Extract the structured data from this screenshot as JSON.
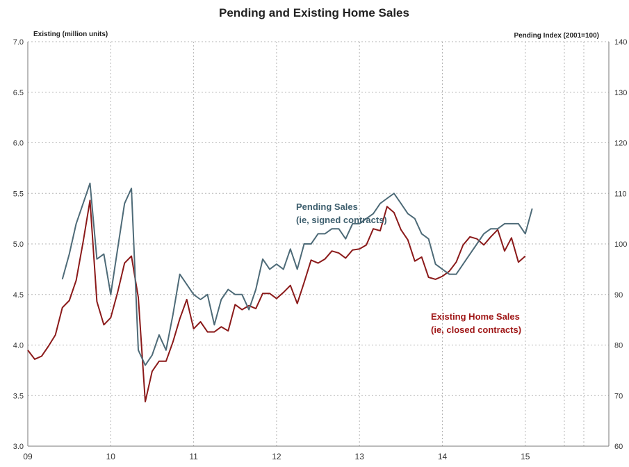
{
  "chart_data": {
    "type": "line",
    "title": "Pending and Existing Home Sales",
    "ylabel_left": "Existing (million units)",
    "ylabel_right": "Pending Index (2001=100)",
    "ylim_left": [
      3.0,
      7.0
    ],
    "ylim_right": [
      60,
      140
    ],
    "y_ticks_left": [
      "3.0",
      "3.5",
      "4.0",
      "4.5",
      "5.0",
      "5.5",
      "6.0",
      "6.5",
      "7.0"
    ],
    "y_ticks_right": [
      "60",
      "70",
      "80",
      "90",
      "100",
      "110",
      "120",
      "130",
      "140"
    ],
    "x_ticks": [
      "09",
      "10",
      "11",
      "12",
      "13",
      "14",
      "15"
    ],
    "grid": true,
    "annotations": [
      {
        "id": "pending",
        "lines": [
          "Pending Sales",
          "(ie, signed contracts)"
        ],
        "color": "#3e5f6e"
      },
      {
        "id": "existing",
        "lines": [
          "Existing Home Sales",
          "(ie, closed contracts)"
        ],
        "color": "#a01818"
      }
    ],
    "series": [
      {
        "id": "existing",
        "axis": "left",
        "color": "#8b1a1a",
        "x": [
          2009.0,
          2009.083,
          2009.167,
          2009.25,
          2009.333,
          2009.417,
          2009.5,
          2009.583,
          2009.667,
          2009.75,
          2009.833,
          2009.917,
          2010.0,
          2010.083,
          2010.167,
          2010.25,
          2010.333,
          2010.417,
          2010.5,
          2010.583,
          2010.667,
          2010.75,
          2010.833,
          2010.917,
          2011.0,
          2011.083,
          2011.167,
          2011.25,
          2011.333,
          2011.417,
          2011.5,
          2011.583,
          2011.667,
          2011.75,
          2011.833,
          2011.917,
          2012.0,
          2012.083,
          2012.167,
          2012.25,
          2012.333,
          2012.417,
          2012.5,
          2012.583,
          2012.667,
          2012.75,
          2012.833,
          2012.917,
          2013.0,
          2013.083,
          2013.167,
          2013.25,
          2013.333,
          2013.417,
          2013.5,
          2013.583,
          2013.667,
          2013.75,
          2013.833,
          2013.917,
          2014.0,
          2014.083,
          2014.167,
          2014.25,
          2014.333,
          2014.417,
          2014.5,
          2014.583,
          2014.667,
          2014.75,
          2014.833,
          2014.917,
          2015.0
        ],
        "y": [
          3.95,
          3.86,
          3.89,
          3.99,
          4.1,
          4.37,
          4.44,
          4.64,
          5.02,
          5.43,
          4.43,
          4.2,
          4.27,
          4.52,
          4.81,
          4.88,
          4.47,
          3.44,
          3.74,
          3.84,
          3.84,
          4.03,
          4.26,
          4.45,
          4.16,
          4.23,
          4.13,
          4.13,
          4.18,
          4.14,
          4.4,
          4.35,
          4.39,
          4.36,
          4.51,
          4.51,
          4.46,
          4.52,
          4.59,
          4.41,
          4.62,
          4.84,
          4.81,
          4.85,
          4.93,
          4.91,
          4.86,
          4.94,
          4.95,
          4.99,
          5.15,
          5.13,
          5.37,
          5.31,
          5.14,
          5.04,
          4.83,
          4.87,
          4.67,
          4.65,
          4.68,
          4.73,
          4.82,
          4.99,
          5.07,
          5.05,
          4.99,
          5.07,
          5.14,
          4.93,
          5.06,
          4.82,
          4.88
        ]
      },
      {
        "id": "pending",
        "axis": "right",
        "color": "#4e6b78",
        "x": [
          2009.417,
          2009.5,
          2009.583,
          2009.667,
          2009.75,
          2009.833,
          2009.917,
          2010.0,
          2010.083,
          2010.167,
          2010.25,
          2010.333,
          2010.417,
          2010.5,
          2010.583,
          2010.667,
          2010.75,
          2010.833,
          2010.917,
          2011.0,
          2011.083,
          2011.167,
          2011.25,
          2011.333,
          2011.417,
          2011.5,
          2011.583,
          2011.667,
          2011.75,
          2011.833,
          2011.917,
          2012.0,
          2012.083,
          2012.167,
          2012.25,
          2012.333,
          2012.417,
          2012.5,
          2012.583,
          2012.667,
          2012.75,
          2012.833,
          2012.917,
          2013.0,
          2013.083,
          2013.167,
          2013.25,
          2013.333,
          2013.417,
          2013.5,
          2013.583,
          2013.667,
          2013.75,
          2013.833,
          2013.917,
          2014.0,
          2014.083,
          2014.167,
          2014.25,
          2014.333,
          2014.417,
          2014.5,
          2014.583,
          2014.667,
          2014.75,
          2014.833,
          2014.917,
          2015.0,
          2015.083
        ],
        "y": [
          93,
          98,
          104,
          108,
          112,
          97,
          98,
          90,
          99,
          108,
          111,
          79,
          76,
          78,
          82,
          79,
          86,
          94,
          92,
          90,
          89,
          90,
          84,
          89,
          91,
          90,
          90,
          87,
          91,
          97,
          95,
          96,
          95,
          99,
          95,
          100,
          100,
          102,
          102,
          103,
          103,
          101,
          104,
          104,
          105,
          106,
          108,
          109,
          110,
          108,
          106,
          105,
          102,
          101,
          96,
          95,
          94,
          94,
          96,
          98,
          100,
          102,
          103,
          103,
          104,
          104,
          104,
          102,
          107
        ]
      }
    ]
  }
}
